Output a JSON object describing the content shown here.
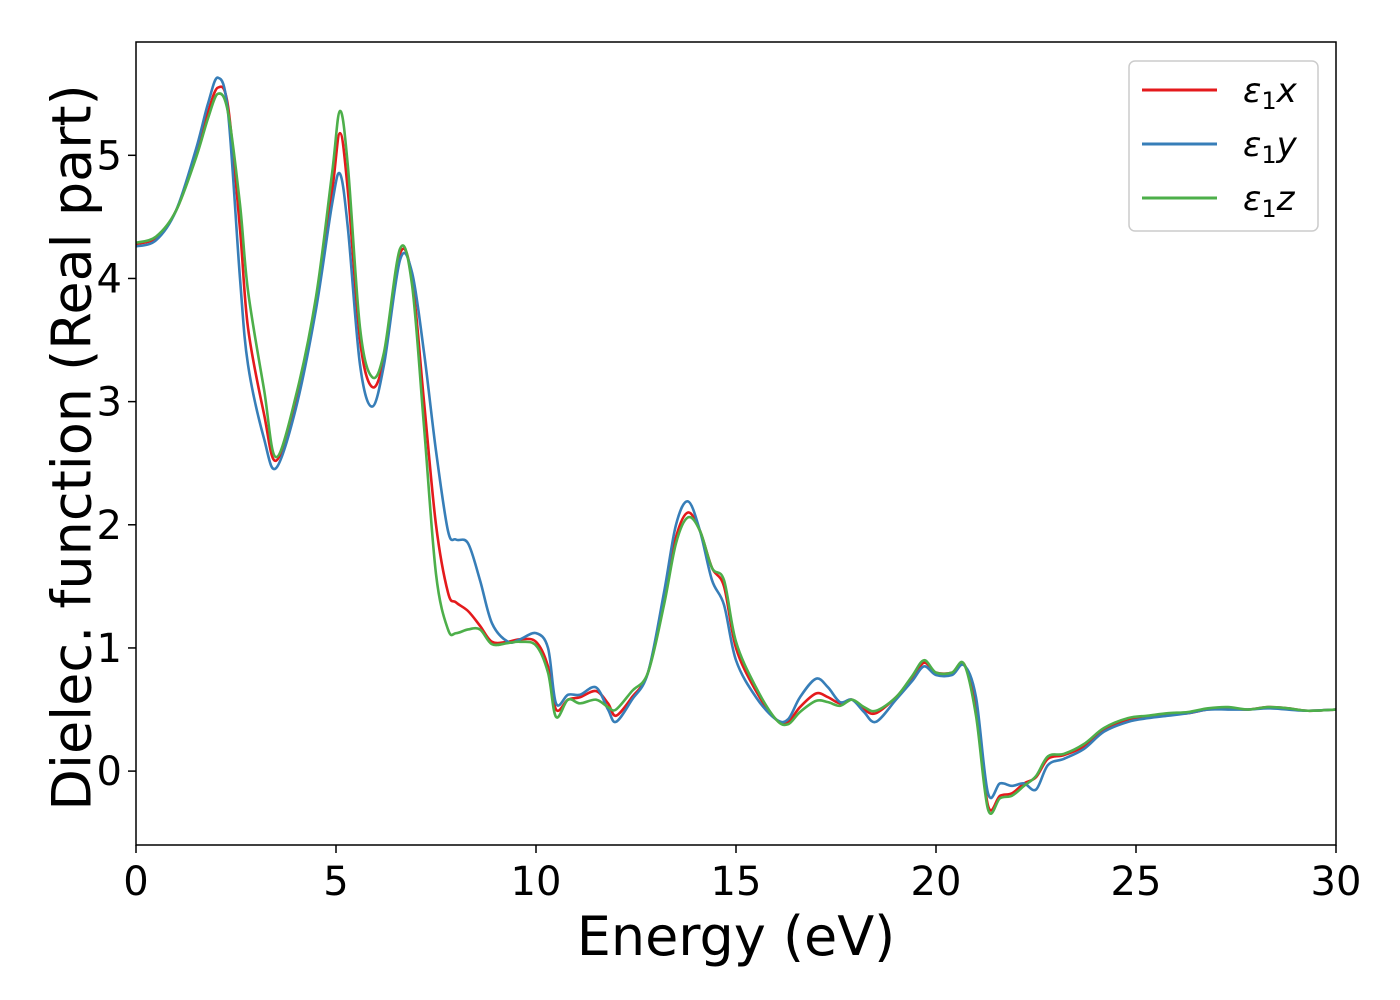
{
  "chart_data": {
    "type": "line",
    "title": "",
    "xlabel": "Energy (eV)",
    "ylabel": "Dielec. function (Real part)",
    "xlim": [
      0,
      30
    ],
    "ylim": [
      -0.6,
      5.92
    ],
    "xticks": [
      0,
      5,
      10,
      15,
      20,
      25,
      30
    ],
    "yticks": [
      0,
      1,
      2,
      3,
      4,
      5
    ],
    "grid": false,
    "legend_position": "top-right",
    "series": [
      {
        "name": "ε1x",
        "legend": {
          "base": "ε",
          "sub": "1",
          "var": "x"
        },
        "color": "#e41a1c",
        "x": [
          0,
          0.5,
          1.0,
          1.5,
          1.8,
          2.05,
          2.3,
          2.6,
          2.8,
          3.2,
          3.5,
          4.0,
          4.5,
          4.9,
          5.1,
          5.3,
          5.6,
          5.9,
          6.2,
          6.6,
          6.9,
          7.2,
          7.5,
          7.8,
          8.0,
          8.3,
          8.6,
          8.9,
          9.3,
          9.6,
          10.0,
          10.3,
          10.5,
          10.8,
          11.1,
          11.5,
          11.8,
          12.0,
          12.4,
          12.8,
          13.2,
          13.5,
          13.8,
          14.1,
          14.4,
          14.7,
          15.0,
          15.5,
          16.0,
          16.3,
          16.6,
          17.0,
          17.3,
          17.6,
          17.9,
          18.2,
          18.5,
          19.0,
          19.4,
          19.7,
          20.0,
          20.4,
          20.7,
          21.0,
          21.3,
          21.6,
          21.9,
          22.2,
          22.5,
          22.8,
          23.2,
          23.7,
          24.2,
          24.8,
          25.3,
          25.8,
          26.3,
          26.8,
          27.3,
          27.8,
          28.3,
          28.8,
          29.3,
          30.0
        ],
        "values": [
          4.28,
          4.33,
          4.55,
          5.0,
          5.35,
          5.55,
          5.4,
          4.4,
          3.6,
          2.9,
          2.52,
          3.0,
          3.8,
          4.7,
          5.18,
          4.7,
          3.5,
          3.12,
          3.35,
          4.2,
          4.0,
          3.0,
          2.0,
          1.45,
          1.37,
          1.3,
          1.18,
          1.05,
          1.05,
          1.07,
          1.05,
          0.85,
          0.5,
          0.58,
          0.6,
          0.65,
          0.55,
          0.45,
          0.6,
          0.8,
          1.4,
          1.9,
          2.1,
          1.95,
          1.65,
          1.5,
          1.0,
          0.65,
          0.42,
          0.4,
          0.52,
          0.63,
          0.6,
          0.55,
          0.58,
          0.5,
          0.47,
          0.6,
          0.75,
          0.88,
          0.8,
          0.8,
          0.87,
          0.5,
          -0.28,
          -0.2,
          -0.18,
          -0.1,
          -0.05,
          0.1,
          0.13,
          0.2,
          0.33,
          0.42,
          0.44,
          0.46,
          0.47,
          0.5,
          0.51,
          0.5,
          0.52,
          0.51,
          0.49,
          0.5
        ]
      },
      {
        "name": "ε1y",
        "legend": {
          "base": "ε",
          "sub": "1",
          "var": "y"
        },
        "color": "#377eb8",
        "x": [
          0,
          0.5,
          1.0,
          1.5,
          1.8,
          2.05,
          2.3,
          2.6,
          2.8,
          3.2,
          3.5,
          4.0,
          4.5,
          4.9,
          5.1,
          5.3,
          5.6,
          5.9,
          6.2,
          6.6,
          6.9,
          7.2,
          7.5,
          7.8,
          8.0,
          8.3,
          8.6,
          8.9,
          9.3,
          9.6,
          10.0,
          10.3,
          10.5,
          10.8,
          11.1,
          11.5,
          11.8,
          12.0,
          12.4,
          12.8,
          13.2,
          13.5,
          13.8,
          14.1,
          14.4,
          14.7,
          15.0,
          15.5,
          16.0,
          16.3,
          16.6,
          17.0,
          17.3,
          17.6,
          17.9,
          18.2,
          18.5,
          19.0,
          19.4,
          19.7,
          20.0,
          20.4,
          20.7,
          21.0,
          21.3,
          21.6,
          21.9,
          22.2,
          22.5,
          22.8,
          23.2,
          23.7,
          24.2,
          24.8,
          25.3,
          25.8,
          26.3,
          26.8,
          27.3,
          27.8,
          28.3,
          28.8,
          29.3,
          30.0
        ],
        "values": [
          4.26,
          4.31,
          4.55,
          5.05,
          5.42,
          5.63,
          5.35,
          4.0,
          3.3,
          2.7,
          2.46,
          2.95,
          3.75,
          4.6,
          4.85,
          4.4,
          3.3,
          2.96,
          3.3,
          4.15,
          4.05,
          3.4,
          2.6,
          1.95,
          1.88,
          1.85,
          1.55,
          1.2,
          1.05,
          1.07,
          1.12,
          1.0,
          0.55,
          0.62,
          0.62,
          0.68,
          0.5,
          0.4,
          0.58,
          0.8,
          1.45,
          2.0,
          2.19,
          1.95,
          1.55,
          1.35,
          0.9,
          0.6,
          0.42,
          0.42,
          0.6,
          0.75,
          0.68,
          0.56,
          0.58,
          0.48,
          0.4,
          0.58,
          0.73,
          0.85,
          0.78,
          0.78,
          0.86,
          0.6,
          -0.18,
          -0.1,
          -0.12,
          -0.1,
          -0.15,
          0.05,
          0.1,
          0.18,
          0.32,
          0.4,
          0.43,
          0.45,
          0.47,
          0.5,
          0.5,
          0.5,
          0.51,
          0.5,
          0.49,
          0.5
        ]
      },
      {
        "name": "ε1z",
        "legend": {
          "base": "ε",
          "sub": "1",
          "var": "z"
        },
        "color": "#4daf4a",
        "x": [
          0,
          0.5,
          1.0,
          1.5,
          1.8,
          2.05,
          2.3,
          2.6,
          2.8,
          3.2,
          3.5,
          4.0,
          4.5,
          4.9,
          5.1,
          5.3,
          5.6,
          5.9,
          6.2,
          6.6,
          6.9,
          7.2,
          7.5,
          7.8,
          8.0,
          8.3,
          8.6,
          8.9,
          9.3,
          9.6,
          10.0,
          10.3,
          10.5,
          10.8,
          11.1,
          11.5,
          11.8,
          12.0,
          12.4,
          12.8,
          13.2,
          13.5,
          13.8,
          14.1,
          14.4,
          14.7,
          15.0,
          15.5,
          16.0,
          16.3,
          16.6,
          17.0,
          17.3,
          17.6,
          17.9,
          18.2,
          18.5,
          19.0,
          19.4,
          19.7,
          20.0,
          20.4,
          20.7,
          21.0,
          21.3,
          21.6,
          21.9,
          22.2,
          22.5,
          22.8,
          23.2,
          23.7,
          24.2,
          24.8,
          25.3,
          25.8,
          26.3,
          26.8,
          27.3,
          27.8,
          28.3,
          28.8,
          29.3,
          30.0
        ],
        "values": [
          4.29,
          4.34,
          4.55,
          4.98,
          5.3,
          5.5,
          5.35,
          4.6,
          3.9,
          3.1,
          2.55,
          3.05,
          3.85,
          4.85,
          5.36,
          4.9,
          3.6,
          3.2,
          3.4,
          4.24,
          3.95,
          2.8,
          1.6,
          1.15,
          1.12,
          1.15,
          1.15,
          1.03,
          1.04,
          1.05,
          1.02,
          0.8,
          0.44,
          0.58,
          0.55,
          0.58,
          0.52,
          0.5,
          0.65,
          0.8,
          1.35,
          1.85,
          2.06,
          1.95,
          1.65,
          1.55,
          1.05,
          0.68,
          0.42,
          0.38,
          0.48,
          0.57,
          0.56,
          0.53,
          0.58,
          0.52,
          0.49,
          0.6,
          0.77,
          0.9,
          0.8,
          0.8,
          0.87,
          0.45,
          -0.31,
          -0.22,
          -0.2,
          -0.12,
          -0.04,
          0.12,
          0.14,
          0.22,
          0.35,
          0.43,
          0.45,
          0.47,
          0.48,
          0.51,
          0.52,
          0.5,
          0.52,
          0.51,
          0.49,
          0.5
        ]
      }
    ]
  }
}
